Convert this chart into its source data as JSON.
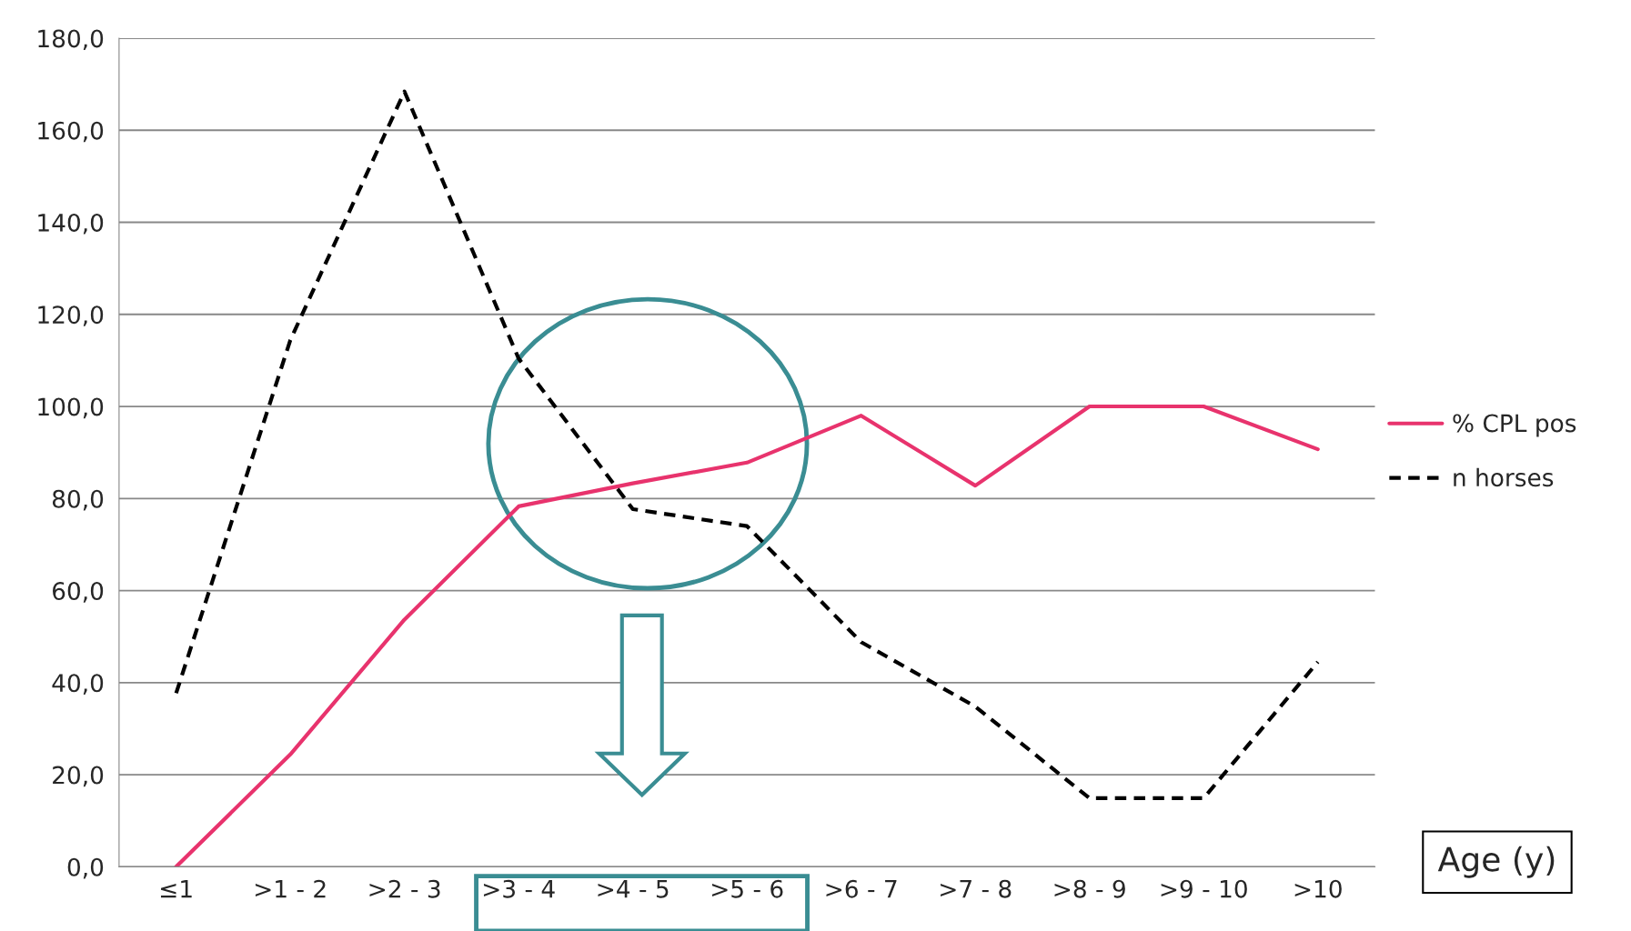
{
  "chart_data": {
    "type": "line",
    "xlabel": "Age (y)",
    "categories": [
      "≤1",
      ">1 - 2",
      ">2 - 3",
      ">3 - 4",
      ">4 - 5",
      ">5 - 6",
      ">6 - 7",
      ">7 - 8",
      ">8 - 9",
      ">9 - 10",
      ">10"
    ],
    "series": [
      {
        "name": "% CPL pos",
        "color": "#e8336d",
        "line_style": "solid",
        "values": [
          0,
          24.4,
          53.7,
          78.3,
          83.3,
          87.8,
          98,
          82.8,
          100,
          100,
          90.7
        ]
      },
      {
        "name": "n horses",
        "color": "#000000",
        "line_style": "dashed",
        "values": [
          37.7,
          114.4,
          168.4,
          110.4,
          77.7,
          74,
          48.8,
          34.8,
          14.9,
          14.9,
          44.5
        ]
      }
    ],
    "ylim": [
      0,
      180
    ],
    "yticks": [
      {
        "value": 0,
        "label": "0,0"
      },
      {
        "value": 20,
        "label": "20,0"
      },
      {
        "value": 40,
        "label": "40,0"
      },
      {
        "value": 60,
        "label": "60,0"
      },
      {
        "value": 80,
        "label": "80,0"
      },
      {
        "value": 100,
        "label": "100,0"
      },
      {
        "value": 120,
        "label": "120,0"
      },
      {
        "value": 140,
        "label": "140,0"
      },
      {
        "value": 160,
        "label": "160,0"
      },
      {
        "value": 180,
        "label": "180,0"
      }
    ],
    "grid": "y",
    "legend": "right",
    "marker": "none"
  }
}
